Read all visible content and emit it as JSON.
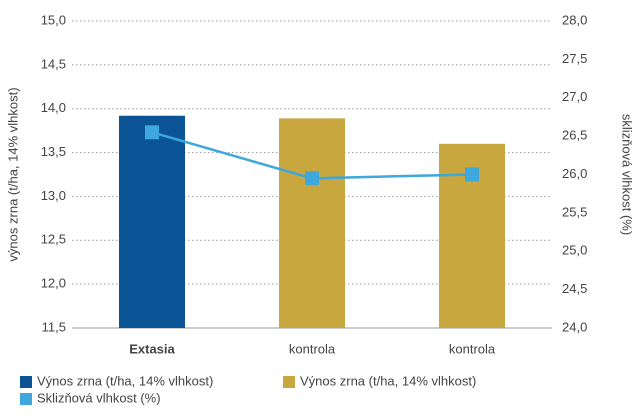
{
  "chart_data": {
    "type": "bar",
    "categories": [
      "Extasia",
      "kontrola",
      "kontrola"
    ],
    "y_label": "výnos zrna (t/ha, 14% vlhkost)",
    "y2_label": "sklizňová vlhkost (%)",
    "ylim": [
      11.5,
      15.0
    ],
    "yticks": [
      {
        "value": 11.5,
        "label": "11,5"
      },
      {
        "value": 12.0,
        "label": "12,0"
      },
      {
        "value": 12.5,
        "label": "12,5"
      },
      {
        "value": 13.0,
        "label": "13,0"
      },
      {
        "value": 13.5,
        "label": "13,5"
      },
      {
        "value": 14.0,
        "label": "14,0"
      },
      {
        "value": 14.5,
        "label": "14,5"
      },
      {
        "value": 15.0,
        "label": "15,0"
      }
    ],
    "y2lim": [
      24.0,
      28.0
    ],
    "y2ticks": [
      {
        "value": 24.0,
        "label": "24,0"
      },
      {
        "value": 24.5,
        "label": "24,5"
      },
      {
        "value": 25.0,
        "label": "25,0"
      },
      {
        "value": 25.5,
        "label": "25,5"
      },
      {
        "value": 26.0,
        "label": "26,0"
      },
      {
        "value": 26.5,
        "label": "26,5"
      },
      {
        "value": 27.0,
        "label": "27,0"
      },
      {
        "value": 27.5,
        "label": "27,5"
      },
      {
        "value": 28.0,
        "label": "28,0"
      }
    ],
    "grid": true,
    "legend": "bottom",
    "series": [
      {
        "name": "Výnos zrna (t/ha, 14% vlhkost)",
        "type": "bar",
        "color": "#0b5596",
        "values": [
          13.92,
          null,
          null
        ]
      },
      {
        "name": "Výnos zrna (t/ha, 14% vlhkost)",
        "type": "bar",
        "color": "#c8a83e",
        "values": [
          null,
          13.89,
          13.6
        ]
      },
      {
        "name": "Sklizňová vlhkost (%)",
        "type": "line",
        "axis": "y2",
        "color": "#3ea7dc",
        "values": [
          26.55,
          25.95,
          26.0
        ]
      }
    ]
  }
}
